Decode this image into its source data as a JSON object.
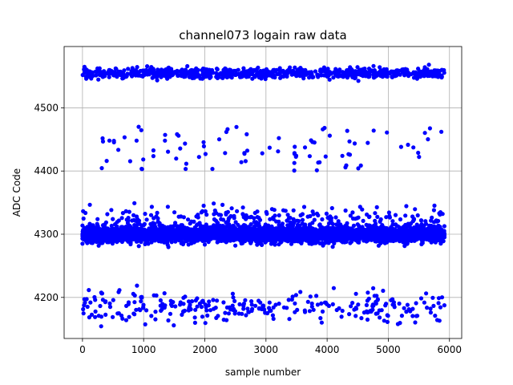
{
  "chart_data": {
    "type": "scatter",
    "title": "channel073 logain raw data",
    "xlabel": "sample number",
    "ylabel": "ADC Code",
    "xlim": [
      -300,
      6200
    ],
    "ylim": [
      4135,
      4597
    ],
    "x_ticks": [
      0,
      1000,
      2000,
      3000,
      4000,
      5000,
      6000
    ],
    "y_ticks": [
      4200,
      4300,
      4400,
      4500
    ],
    "grid": true,
    "marker_color": "#0000ff",
    "n_samples": 5920,
    "series": [
      {
        "marker_color": "#0000ff",
        "clusters": [
          {
            "center": 4555,
            "spread": 4,
            "x_range": [
              0,
              5920
            ],
            "fraction": 0.13
          },
          {
            "center": 4300,
            "spread": 6,
            "x_range": [
              0,
              5920
            ],
            "fraction": 0.72
          },
          {
            "center": 4185,
            "spread": 12,
            "x_range": [
              0,
              5920
            ],
            "fraction": 0.05
          },
          {
            "center": 4440,
            "spread": 20,
            "x_range": [
              100,
              5900
            ],
            "fraction": 0.015
          },
          {
            "center": 4325,
            "spread": 10,
            "x_range": [
              0,
              5920
            ],
            "fraction": 0.04
          }
        ]
      }
    ]
  }
}
